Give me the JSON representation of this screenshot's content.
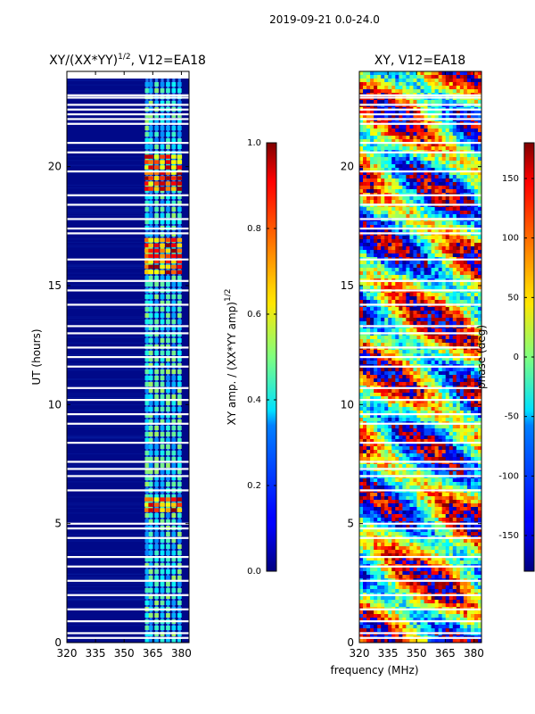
{
  "figure": {
    "suptitle": "2019-09-21 0.0-24.0",
    "xlabel": "frequency (MHz)"
  },
  "chart_data": [
    {
      "type": "heatmap",
      "title_main": "XY/(XX*YY)",
      "title_sup": "1/2",
      "title_tail": ", V12=EA18",
      "ylabel": "UT (hours)",
      "x_ticks": [
        "320",
        "335",
        "350",
        "365",
        "380"
      ],
      "x_tick_values": [
        320,
        335,
        350,
        365,
        380
      ],
      "y_ticks": [
        "0",
        "5",
        "10",
        "15",
        "20"
      ],
      "y_tick_values": [
        0,
        5,
        10,
        15,
        20
      ],
      "xlim": [
        320,
        384
      ],
      "ylim": [
        0,
        24
      ],
      "colormap": "jet",
      "clim": [
        0,
        1
      ],
      "colorbar_label_main": "XY amp. / (XX*YY amp)",
      "colorbar_label_sup": "1/2",
      "colorbar_ticks": [
        "0.0",
        "0.2",
        "0.4",
        "0.6",
        "0.8",
        "1.0"
      ],
      "colorbar_tick_values": [
        0,
        0.2,
        0.4,
        0.6,
        0.8,
        1.0
      ],
      "bright_channels_mhz": [
        362,
        364,
        367,
        370,
        373,
        376,
        379
      ],
      "high_amplitude_hours": [
        [
          5.5,
          6.1
        ],
        [
          15.6,
          17.0
        ],
        [
          19.0,
          20.5
        ]
      ],
      "flagged_hours": [
        0.2,
        0.4,
        0.9,
        1.4,
        2.0,
        2.6,
        3.2,
        3.6,
        4.4,
        4.8,
        5.0,
        6.4,
        7.0,
        7.3,
        7.6,
        8.4,
        9.2,
        9.6,
        10.2,
        10.7,
        11.6,
        12.0,
        12.4,
        13.0,
        13.3,
        14.2,
        14.8,
        15.2,
        16.1,
        17.2,
        17.4,
        17.8,
        18.4,
        18.8,
        19.8,
        20.6,
        21.0,
        21.8,
        22.0,
        22.2,
        22.4,
        22.6,
        22.9,
        23.0
      ]
    },
    {
      "type": "heatmap",
      "title": "XY, V12=EA18",
      "x_ticks": [
        "320",
        "335",
        "350",
        "365",
        "380"
      ],
      "x_tick_values": [
        320,
        335,
        350,
        365,
        380
      ],
      "y_ticks": [
        "0",
        "5",
        "10",
        "15",
        "20"
      ],
      "y_tick_values": [
        0,
        5,
        10,
        15,
        20
      ],
      "xlim": [
        320,
        384
      ],
      "ylim": [
        0,
        24
      ],
      "colormap": "jet",
      "clim": [
        -180,
        180
      ],
      "colorbar_label": "phase (deg)",
      "colorbar_ticks": [
        "-150",
        "-100",
        "-50",
        "0",
        "50",
        "100",
        "150"
      ],
      "colorbar_tick_values": [
        -150,
        -100,
        -50,
        0,
        50,
        100,
        150
      ],
      "flagged_hours": [
        0.2,
        0.4,
        0.9,
        1.4,
        2.0,
        2.6,
        3.2,
        3.6,
        4.4,
        4.8,
        5.0,
        6.4,
        7.0,
        7.3,
        7.6,
        8.4,
        9.2,
        9.6,
        10.2,
        10.7,
        11.6,
        12.0,
        12.4,
        13.0,
        13.3,
        14.2,
        14.8,
        15.2,
        16.1,
        17.2,
        17.4,
        17.8,
        18.4,
        18.8,
        19.8,
        20.6,
        21.0,
        21.8,
        22.0,
        22.2,
        22.4,
        22.6,
        22.9,
        23.0
      ]
    }
  ]
}
